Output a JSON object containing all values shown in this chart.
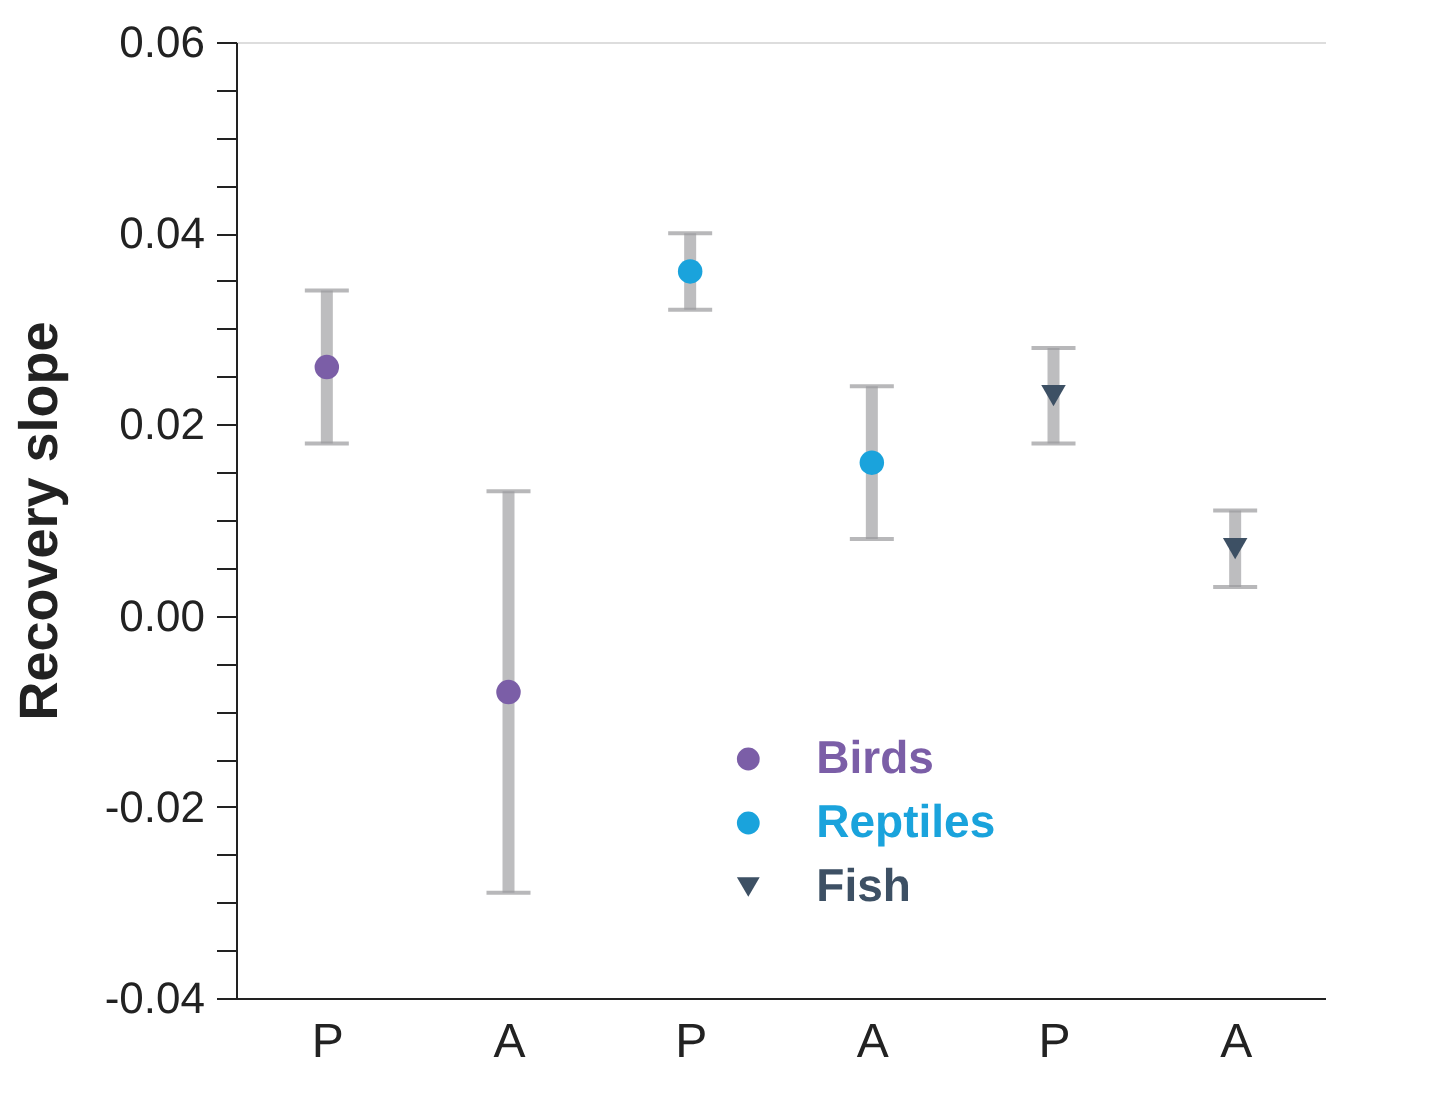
{
  "chart_data": {
    "type": "scatter",
    "ylabel": "Recovery slope",
    "categories": [
      "P",
      "A",
      "P",
      "A",
      "P",
      "A"
    ],
    "series": [
      {
        "name": "Birds",
        "color": "#7b5ea7",
        "marker": "circle",
        "values": [
          0.026,
          -0.008,
          null,
          null,
          null,
          null
        ],
        "errors": [
          [
            0.018,
            0.034
          ],
          [
            -0.029,
            0.013
          ],
          null,
          null,
          null,
          null
        ]
      },
      {
        "name": "Reptiles",
        "color": "#1aa3dc",
        "marker": "circle",
        "values": [
          null,
          null,
          0.036,
          0.016,
          null,
          null
        ],
        "errors": [
          null,
          null,
          [
            0.032,
            0.04
          ],
          [
            0.008,
            0.024
          ],
          null,
          null
        ]
      },
      {
        "name": "Fish",
        "color": "#3d5064",
        "marker": "triangle",
        "values": [
          null,
          null,
          null,
          null,
          0.023,
          0.007
        ],
        "errors": [
          null,
          null,
          null,
          null,
          [
            0.018,
            0.028
          ],
          [
            0.003,
            0.011
          ]
        ]
      }
    ],
    "ylim": [
      -0.04,
      0.06
    ],
    "yticks": [
      -0.04,
      {
        "value": -0.035,
        "label": null
      },
      {
        "value": -0.03,
        "label": null
      },
      {
        "value": -0.025,
        "label": null
      },
      -0.02,
      {
        "value": -0.015,
        "label": null
      },
      {
        "value": -0.01,
        "label": null
      },
      {
        "value": -0.005,
        "label": null
      },
      {
        "value": 0,
        "label": "0.00"
      },
      {
        "value": 0.005,
        "label": null
      },
      {
        "value": 0.01,
        "label": null
      },
      {
        "value": 0.015,
        "label": null
      },
      0.02,
      {
        "value": 0.025,
        "label": null
      },
      {
        "value": 0.03,
        "label": null
      },
      {
        "value": 0.035,
        "label": null
      },
      0.04,
      {
        "value": 0.045,
        "label": null
      },
      {
        "value": 0.05,
        "label": null
      },
      {
        "value": 0.055,
        "label": null
      },
      0.06
    ],
    "grid": false,
    "legend": "bottom"
  }
}
